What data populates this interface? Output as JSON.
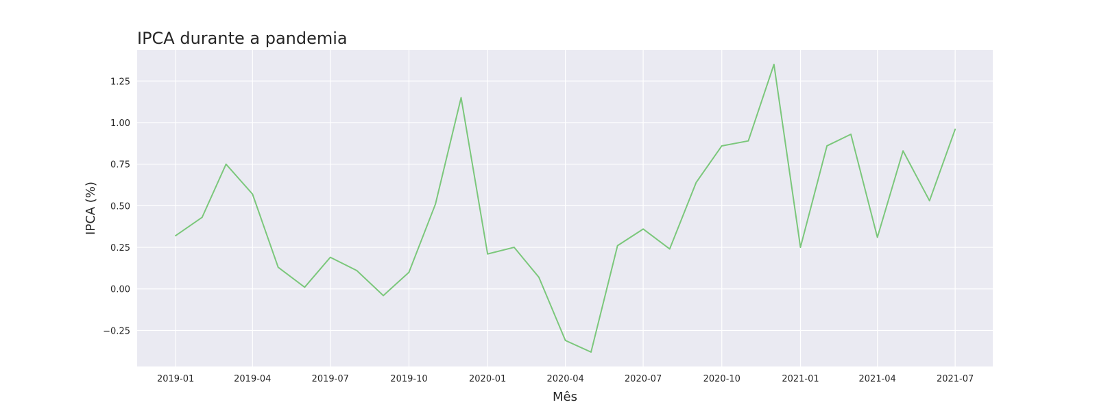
{
  "chart_data": {
    "type": "line",
    "title": "IPCA durante a pandemia",
    "xlabel": "Mês",
    "ylabel": "IPCA (%)",
    "x": [
      "2019-01",
      "2019-02",
      "2019-03",
      "2019-04",
      "2019-05",
      "2019-06",
      "2019-07",
      "2019-08",
      "2019-09",
      "2019-10",
      "2019-11",
      "2019-12",
      "2020-01",
      "2020-02",
      "2020-03",
      "2020-04",
      "2020-05",
      "2020-06",
      "2020-07",
      "2020-08",
      "2020-09",
      "2020-10",
      "2020-11",
      "2020-12",
      "2021-01",
      "2021-02",
      "2021-03",
      "2021-04",
      "2021-05",
      "2021-06",
      "2021-07"
    ],
    "series": [
      {
        "values": [
          0.32,
          0.43,
          0.75,
          0.57,
          0.13,
          0.01,
          0.19,
          0.11,
          -0.04,
          0.1,
          0.51,
          1.15,
          0.21,
          0.25,
          0.07,
          -0.31,
          -0.38,
          0.26,
          0.36,
          0.24,
          0.64,
          0.86,
          0.89,
          1.35,
          0.25,
          0.86,
          0.93,
          0.31,
          0.83,
          0.53,
          0.96
        ],
        "color": "#7bc77b"
      }
    ],
    "x_ticks": [
      "2019-01",
      "2019-04",
      "2019-07",
      "2019-10",
      "2020-01",
      "2020-04",
      "2020-07",
      "2020-10",
      "2021-01",
      "2021-04",
      "2021-07"
    ],
    "y_ticks": [
      -0.25,
      0.0,
      0.25,
      0.5,
      0.75,
      1.0,
      1.25
    ],
    "y_tick_labels": [
      "−0.25",
      "0.00",
      "0.25",
      "0.50",
      "0.75",
      "1.00",
      "1.25"
    ],
    "xlim": [
      "2018-11-17",
      "2021-08-14"
    ],
    "ylim": [
      -0.4665,
      1.4365
    ],
    "grid": true,
    "legend": false,
    "style": {
      "plot_background": "#eaeaf2",
      "grid_color": "#ffffff",
      "text_color": "#262626"
    }
  }
}
